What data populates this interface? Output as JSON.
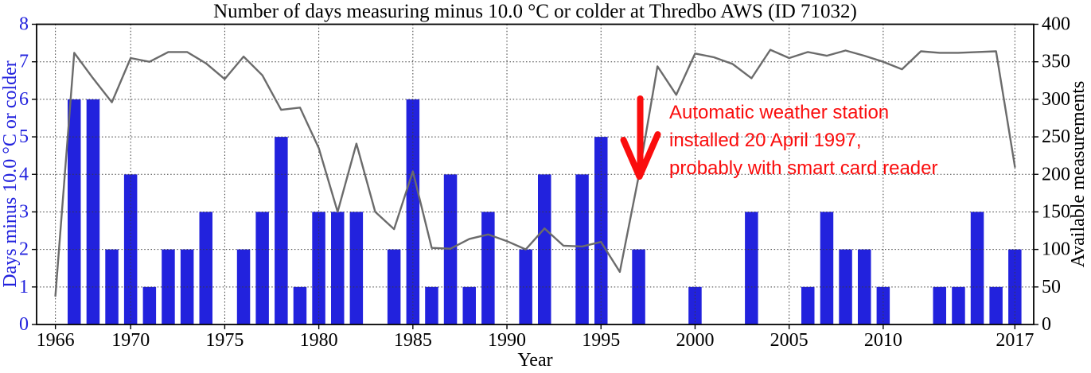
{
  "chart_data": {
    "type": "bar",
    "title": "Number of days measuring minus 10.0 °C or colder at Thredbo AWS (ID 71032)",
    "xlabel": "Year",
    "ylabel_left": "Days minus 10.0 °C or colder",
    "ylabel_right": "Available measurements",
    "xlim": [
      1965,
      2018
    ],
    "ylim_left": [
      0,
      8
    ],
    "ylim_right": [
      0,
      400
    ],
    "x_ticks": [
      1966,
      1970,
      1975,
      1980,
      1985,
      1990,
      1995,
      2000,
      2005,
      2010,
      2017
    ],
    "y_ticks_left": [
      0,
      1,
      2,
      3,
      4,
      5,
      6,
      7,
      8
    ],
    "y_ticks_right": [
      0,
      50,
      100,
      150,
      200,
      250,
      300,
      350,
      400
    ],
    "grid": true,
    "legend": "none",
    "x": [
      1966,
      1967,
      1968,
      1969,
      1970,
      1971,
      1972,
      1973,
      1974,
      1975,
      1976,
      1977,
      1978,
      1979,
      1980,
      1981,
      1982,
      1983,
      1984,
      1985,
      1986,
      1987,
      1988,
      1989,
      1990,
      1991,
      1992,
      1993,
      1994,
      1995,
      1996,
      1997,
      1998,
      1999,
      2000,
      2001,
      2002,
      2003,
      2004,
      2005,
      2006,
      2007,
      2008,
      2009,
      2010,
      2011,
      2012,
      2013,
      2014,
      2015,
      2016,
      2017
    ],
    "series": [
      {
        "name": "Days minus 10.0 °C or colder",
        "type": "bar",
        "axis": "left",
        "values": [
          0,
          6,
          6,
          2,
          4,
          1,
          2,
          2,
          3,
          0,
          2,
          3,
          5,
          1,
          3,
          3,
          3,
          0,
          2,
          6,
          1,
          4,
          1,
          3,
          0,
          2,
          4,
          0,
          4,
          5,
          0,
          2,
          0,
          0,
          1,
          0,
          0,
          3,
          0,
          0,
          1,
          3,
          2,
          2,
          1,
          0,
          0,
          1,
          1,
          3,
          1,
          2
        ]
      },
      {
        "name": "Available measurements",
        "type": "line",
        "axis": "right",
        "values": [
          38,
          362,
          328,
          296,
          355,
          350,
          363,
          363,
          348,
          327,
          357,
          332,
          286,
          289,
          235,
          150,
          241,
          150,
          127,
          204,
          102,
          101,
          114,
          120,
          111,
          100,
          128,
          105,
          104,
          110,
          70,
          197,
          344,
          306,
          361,
          356,
          347,
          328,
          366,
          355,
          363,
          358,
          365,
          358,
          350,
          340,
          364,
          362,
          362,
          363,
          364,
          210
        ]
      }
    ],
    "colors": {
      "bars": "#2222dd",
      "line": "#6b6b6b",
      "annotation": "#fa0d0d",
      "axis_left_text": "#2222dd",
      "axis_right_text": "#000000",
      "grid": "#3a3a3a",
      "spine": "#000000"
    },
    "annotation": {
      "lines": [
        "Automatic weather station",
        "installed 20 April 1997,",
        "probably with smart card reader"
      ],
      "points_to_year": 1997
    }
  }
}
